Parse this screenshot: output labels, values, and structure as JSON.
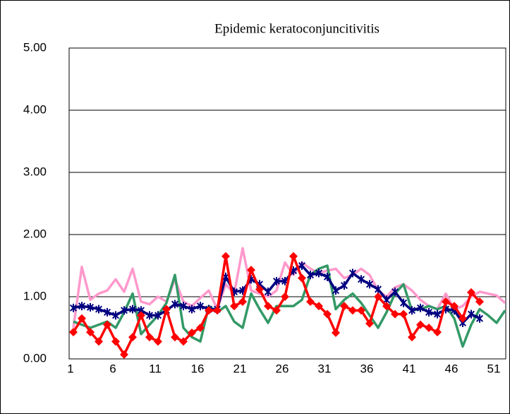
{
  "chart_data": {
    "type": "line",
    "title": "Epidemic keratoconjuncitivitis",
    "categories": [
      1,
      null,
      null,
      null,
      null,
      6,
      null,
      null,
      null,
      null,
      11,
      null,
      null,
      null,
      null,
      16,
      null,
      null,
      null,
      null,
      21,
      null,
      null,
      null,
      null,
      26,
      null,
      null,
      null,
      null,
      31,
      null,
      null,
      null,
      null,
      36,
      null,
      null,
      null,
      null,
      41,
      null,
      null,
      null,
      null,
      46,
      null,
      null,
      null,
      null,
      51,
      null
    ],
    "series": [
      {
        "color": "#ff99cc",
        "marker": "none",
        "values": [
          0.5,
          1.48,
          0.95,
          1.05,
          1.1,
          1.28,
          1.08,
          1.45,
          0.92,
          0.88,
          1.0,
          0.92,
          1.28,
          0.92,
          0.85,
          0.98,
          1.1,
          0.8,
          1.2,
          1.05,
          1.78,
          1.1,
          1.05,
          1.0,
          1.1,
          1.55,
          1.35,
          1.55,
          1.45,
          1.38,
          1.42,
          1.45,
          1.3,
          1.35,
          1.45,
          1.35,
          1.1,
          1.0,
          1.15,
          1.2,
          1.1,
          0.95,
          0.85,
          0.8,
          1.05,
          0.8,
          0.85,
          1.0,
          1.08,
          1.05,
          1.02,
          0.9
        ]
      },
      {
        "color": "#339966",
        "marker": "none",
        "values": [
          0.6,
          0.55,
          0.5,
          0.55,
          0.6,
          0.5,
          0.75,
          1.05,
          0.4,
          0.55,
          0.7,
          0.9,
          1.35,
          0.5,
          0.35,
          0.28,
          0.85,
          0.75,
          0.85,
          0.6,
          0.5,
          1.05,
          0.8,
          0.58,
          0.85,
          0.85,
          0.85,
          0.95,
          1.35,
          1.45,
          1.5,
          0.8,
          0.95,
          1.05,
          0.9,
          0.7,
          0.5,
          0.75,
          1.05,
          1.2,
          0.78,
          0.8,
          0.85,
          0.8,
          0.85,
          0.65,
          0.2,
          0.55,
          0.8,
          0.7,
          0.58,
          0.78
        ]
      },
      {
        "color": "#000080",
        "marker": "asterisk",
        "values": [
          0.82,
          0.85,
          0.83,
          0.8,
          0.75,
          0.7,
          0.78,
          0.8,
          0.78,
          0.7,
          0.7,
          0.78,
          0.88,
          0.85,
          0.8,
          0.85,
          0.8,
          0.8,
          1.32,
          1.08,
          1.1,
          1.28,
          1.2,
          1.08,
          1.25,
          1.25,
          1.42,
          1.5,
          1.35,
          1.38,
          1.32,
          1.1,
          1.18,
          1.38,
          1.28,
          1.2,
          1.12,
          0.95,
          1.08,
          0.9,
          0.78,
          0.82,
          0.75,
          0.72,
          0.8,
          0.78,
          0.58,
          0.72,
          0.65,
          null,
          null,
          null
        ]
      },
      {
        "color": "#ff0000",
        "marker": "diamond",
        "values": [
          0.43,
          0.65,
          0.43,
          0.28,
          0.55,
          0.28,
          0.07,
          0.35,
          0.7,
          0.35,
          0.28,
          0.8,
          0.35,
          0.28,
          0.42,
          0.5,
          0.78,
          0.78,
          1.65,
          0.85,
          0.92,
          1.43,
          1.12,
          0.85,
          0.78,
          1.0,
          1.65,
          1.3,
          0.92,
          0.85,
          0.72,
          0.42,
          0.85,
          0.78,
          0.78,
          0.57,
          1.0,
          0.85,
          0.72,
          0.72,
          0.35,
          0.55,
          0.5,
          0.43,
          0.92,
          0.85,
          0.65,
          1.07,
          0.92,
          null,
          null,
          null
        ]
      }
    ],
    "ylim": [
      0,
      5
    ],
    "yticks": [
      {
        "value": 0,
        "label": "0.00"
      },
      {
        "value": 1,
        "label": "1.00"
      },
      {
        "value": 2,
        "label": "2.00"
      },
      {
        "value": 3,
        "label": "3.00"
      },
      {
        "value": 4,
        "label": "4.00"
      },
      {
        "value": 5,
        "label": "5.00"
      }
    ],
    "grid": true
  }
}
